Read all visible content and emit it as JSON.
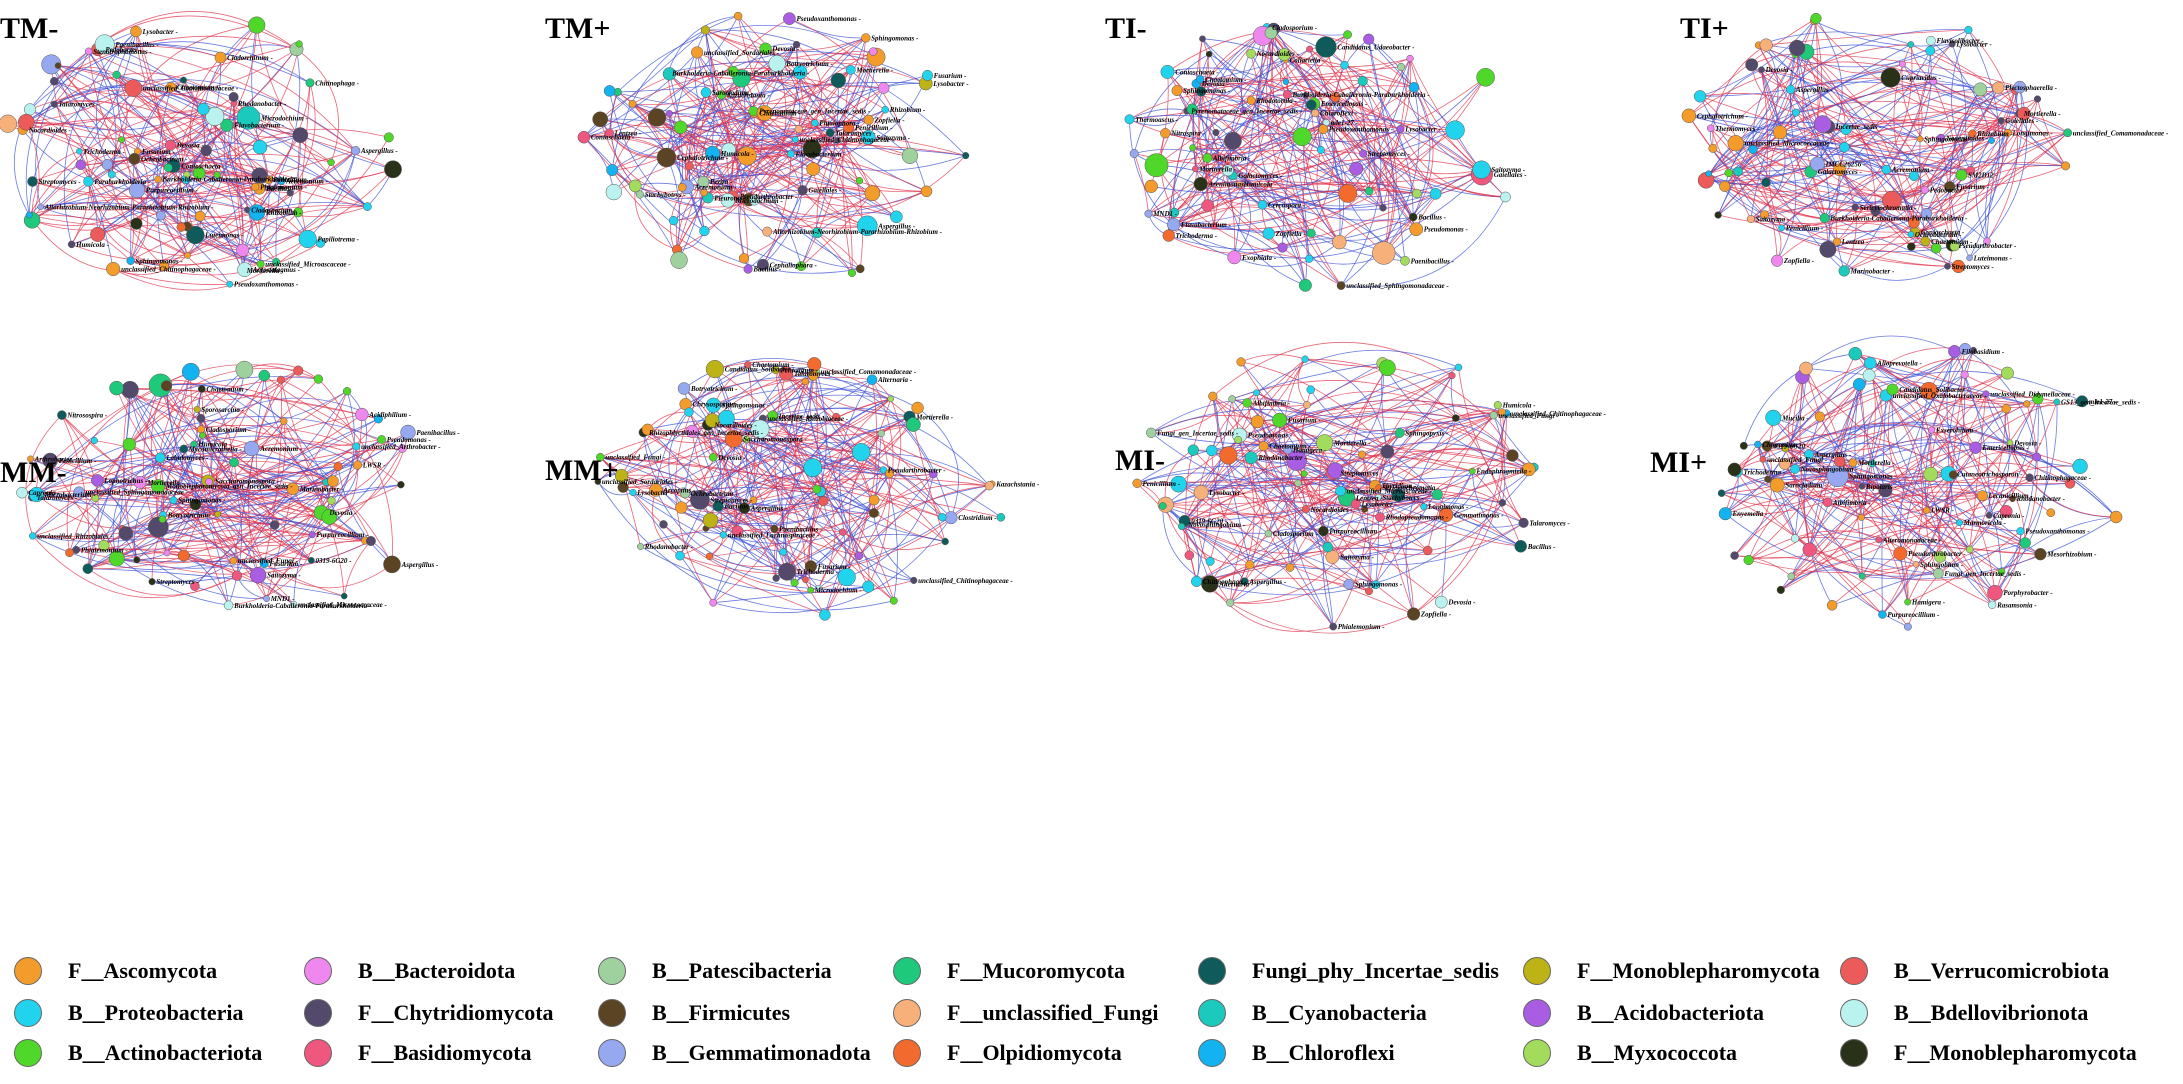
{
  "panels": [
    {
      "title": "TM-",
      "labels": [
        "Trichoderma",
        "Papiliotrema",
        "Fusarium",
        "Rhodanobacter",
        "Purpureocillium",
        "Acremonium",
        "Sphingomonas",
        "Conioschaeta",
        "Pseudoxanthomonas",
        "unclassified_Comamonadaceae",
        "Burkholderia-Caballeronia-Paraburkholderia",
        "Bacillus",
        "Talaromyces",
        "Microdochium",
        "Cladosporium",
        "Penicillium",
        "Mortierella",
        "Rhizobium",
        "Allorhizobium-Neorhizobium-Pararhizobium-Rhizobium",
        "Chaetomium",
        "Lysobacter",
        "Flavobacterium",
        "Pedobacter",
        "Aspergillus",
        "Devosia",
        "Cladorrhinum",
        "Nocardioides",
        "Streptomyces",
        "Acrostalagmus",
        "unclassified_Chitinophagaceae",
        "Phialemonium",
        "Paenibacillus",
        "Chitinophaga",
        "Humicola",
        "Luteimonas",
        "Stenotrophomonas",
        "Paraburkholderia",
        "unclassified_Microascaceae",
        "Ochrobactrum"
      ]
    },
    {
      "title": "TM+",
      "labels": [
        "Botryotrichum",
        "Rhizobium",
        "Burkholderia-Caballeronia-Paraburkholderia",
        "Gaiellales",
        "Sarocladium",
        "Cephaliophora",
        "Aspergillus",
        "Pseudarthrobacter",
        "Lysobacter",
        "Devosia",
        "Mortierella",
        "Chaetomium",
        "Pseudoxanthomonas",
        "Bacillus",
        "Lentzea",
        "Flavobacterium",
        "Acremonium",
        "Stachybotrys",
        "Cephalotrichum",
        "Saitozyma",
        "Pleurotus",
        "Conioschaeta",
        "Kazachstania",
        "Peziza",
        "Phialophora",
        "Microdochium",
        "Penicillium",
        "Talaromyces",
        "Fusarium",
        "Zopfiella",
        "Sphingomonas",
        "Humicola",
        "Allorhizobium-Neorhizobium-Pararhizobium-Rhizobium",
        "Pyrenomataceae_gen_Incertae_sedis",
        "unclassified_Chitinophagaceae",
        "unclassified_Sordariales"
      ]
    },
    {
      "title": "TI-",
      "labels": [
        "Lysobacter",
        "Arenimonas",
        "Cladosporium",
        "Conioschaeta",
        "Gaiellales",
        "Candidatus_Udaeobacter",
        "Bacillus",
        "Paenibacillus",
        "Devosia",
        "Nocardioides",
        "Mortierella",
        "Chaetomium",
        "Pseudomonas",
        "Flavobacterium",
        "Sphingomonas",
        "Streptomyces",
        "Zopfiella",
        "Albifimbria",
        "Saitozyma",
        "Thermoascus",
        "Emericellopsis",
        "Exophiala",
        "Rhodotorula",
        "Burkholderia-Caballeronia-Paraburkholderia",
        "Pyrenomataceae_gen_Incertae_sedis",
        "Chloroflexi",
        "Galactomyces",
        "Cercospora",
        "mle1-27",
        "Collariella",
        "Nitrospira",
        "Pseudoxanthomonas",
        "MND1",
        "unclassified_Sphingomonadaceae",
        "Trichoderma",
        "Humicola"
      ]
    },
    {
      "title": "TI+",
      "labels": [
        "Burkholderia-Caballeronia-Paraburkholderia",
        "Sphingomonas",
        "Flavisolibacter",
        "Rhizobium",
        "Pedobacter",
        "Streptomyces",
        "Thermomyces",
        "Longimonas",
        "Marinobacter",
        "Mortierella",
        "Chaetomium",
        "Gaiellales",
        "Penicillium",
        "Aspergillus",
        "Fusarium",
        "Cephalotrichum",
        "Saitozyma",
        "Devosia",
        "Nocardioides",
        "Lysobacter",
        "Sericytochromatia",
        "Pseudarthrobacter",
        "Zopfiella",
        "Lentzea",
        "Cupriavidus",
        "unclassified_Micrococcaceae",
        "unclassified_Comamonadaceae",
        "Conioschaeta",
        "Plectosphaerella",
        "Galactomyces",
        "SM2D12",
        "IMCC26256",
        "Incertae_sedis",
        "Ochrobactrum",
        "Acremonium",
        "Luteimonas"
      ]
    },
    {
      "title": "MM-",
      "labels": [
        "Purpureocillium",
        "Burkholderia-Caballeronia-Paraburkholderia",
        "Botryotrichum",
        "Lophotrichus",
        "Mortierella",
        "Acremonium",
        "Phialemonium",
        "Saccharomonospora",
        "unclassified_Rhizobiales",
        "unclassified_Micrococcaceae",
        "unclassified_Sphingomonadaceae",
        "Pseudomonas",
        "Streptomyces",
        "Cladosporium",
        "Lobulomyces",
        "Talaromyces",
        "Capronia",
        "Mycomicrothelia",
        "Acidiphilium",
        "Fusarium",
        "Aspergillus",
        "Penicillium",
        "Sphingomonas",
        "Devosia",
        "Saitozyma",
        "Nitrosospira",
        "Sporosarcina",
        "Microbacterium",
        "Paenibacillus",
        "Arthrobacter",
        "unclassified_Fungi",
        "unclassified_Arthrobacter",
        "Chaetomium",
        "Humicola",
        "Marinobacter",
        "0319-6G20",
        "Monoblepharomycota_gen_Incertae_sedis",
        "LWSR",
        "MND1"
      ]
    },
    {
      "title": "MM+",
      "labels": [
        "Chaetomium",
        "Trichoderma",
        "Fusarium",
        "Aspergillus",
        "Penicillium",
        "Mortierella",
        "Rhizophlyctidales_gen_Incertae_sedis",
        "unclassified_Comamonadaceae",
        "unclassified_Rhizobiaceae",
        "Alternaria",
        "Arcopilus",
        "Pseudarthrobacter",
        "Sphingomonas",
        "Streptomyces",
        "Bacillus",
        "Paenibacillus",
        "Lysobacter",
        "Nocardioides",
        "Saccharomonospora",
        "Candidatus_Solibacter",
        "Talaromyces",
        "Botryotrichum",
        "unclassified_Fungi",
        "Ochrobactrum",
        "Devosia",
        "Rhodanobacter",
        "Chrysosporium",
        "Clostridium",
        "Kazachstania",
        "unclassified_Lachnospiraceae",
        "unclassified_Sordariales",
        "unclassified_Chitinophagaceae",
        "Incertae_sedis",
        "Microdochium"
      ]
    },
    {
      "title": "MI-",
      "labels": [
        "Purpureocillium",
        "Zopfiella",
        "Mortierella",
        "Pseudomonas",
        "Novosphingobium",
        "Gemmatimonas",
        "Lysobacter",
        "Nocardioides",
        "Streptomyces",
        "Rhodanobacter",
        "Cladosporium",
        "Phialemonium",
        "Chaetomium",
        "Sphingomonas",
        "Talaromyces",
        "Alternaria",
        "Aspergillus",
        "Penicillium",
        "Fusarium",
        "Humicola",
        "Bacillus",
        "Saitozyma",
        "Sphingopyxis",
        "Longimonas",
        "Devosia",
        "Lentzea",
        "Stachybotrys",
        "Albifimbria",
        "Chitinophaga",
        "Rhodopseudomonas",
        "Thyridium",
        "Lysobacter",
        "unclassified_Fungi",
        "Sericytochromatia",
        "Endophragmiella",
        "0319-6G20",
        "Fungi_gen_Incertae_sedis",
        "unclassified_Microascaceae",
        "unclassified_Chitinophagaceae",
        "Hamigera"
      ]
    },
    {
      "title": "MI+",
      "labels": [
        "Alteromonadaceae",
        "Purpureocillium",
        "Porphyrobacter",
        "unclassified_Didymellaceae",
        "GS13_gen_Incertae_sedis",
        "Mesorhizobium",
        "Filobasidium",
        "Rasamsonia",
        "Sphingomonas",
        "Pseudarthrobacter",
        "Aspergillus",
        "Exserohilum",
        "Bipolaris",
        "Sarocladium",
        "Enyemella",
        "Cutaneotrichosporon",
        "Chitinophagaceae",
        "Marmoricola",
        "Fungi_gen_Incertae_sedis",
        "Alloprevotella",
        "Novosphingobium",
        "Emericellopsis",
        "Chloronium",
        "Sphingobium",
        "Trichoderma",
        "Mortierella",
        "Rhodanobacter",
        "Capronia",
        "Lecanicillium",
        "Hamigera",
        "Albifimbria",
        "mle1-27",
        "0319-6G20",
        "LWSR",
        "Devosia",
        "Mucilia",
        "Pseudoxanthomonas",
        "unclassified_Oxalobacteraceae",
        "Candidatus_Solibacter",
        "unclassified_Fungi"
      ]
    }
  ],
  "legend": [
    {
      "label": "F__Ascomycota",
      "color": "#f39c2c"
    },
    {
      "label": "B__Proteobacteria",
      "color": "#22d3ee"
    },
    {
      "label": "B__Actinobacteriota",
      "color": "#4fd82a"
    },
    {
      "label": "B__Bacteroidota",
      "color": "#ee88ee"
    },
    {
      "label": "F__Chytridiomycota",
      "color": "#534a6b"
    },
    {
      "label": "F__Basidiomycota",
      "color": "#f0577f"
    },
    {
      "label": "B__Patescibacteria",
      "color": "#9fd19f"
    },
    {
      "label": "B__Firmicutes",
      "color": "#5a4423"
    },
    {
      "label": "B__Gemmatimonadota",
      "color": "#95a8f0"
    },
    {
      "label": "F__Mucoromycota",
      "color": "#1fc97b"
    },
    {
      "label": "F__unclassified_Fungi",
      "color": "#f7b07a"
    },
    {
      "label": "F__Olpidiomycota",
      "color": "#f36a2e"
    },
    {
      "label": "Fungi_phy_Incertae_sedis",
      "color": "#0f5b5b"
    },
    {
      "label": "B__Cyanobacteria",
      "color": "#1cc9bd"
    },
    {
      "label": "B__Chloroflexi",
      "color": "#12b3f0"
    },
    {
      "label": "F__Monoblepharomycota",
      "color": "#bdb216"
    },
    {
      "label": "B__Acidobacteriota",
      "color": "#a85de3"
    },
    {
      "label": "B__Myxococcota",
      "color": "#a3dc5c"
    },
    {
      "label": "B__Verrucomicrobiota",
      "color": "#ec5a5a"
    },
    {
      "label": "B__Bdellovibrionota",
      "color": "#b9f2ee"
    },
    {
      "label": "F__Monoblepharomycota",
      "color": "#2a3119"
    }
  ],
  "edge_colors": {
    "positive": "#e0304a",
    "negative": "#3a4fd6"
  }
}
